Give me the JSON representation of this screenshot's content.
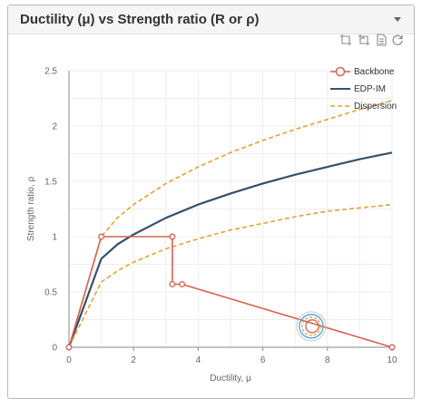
{
  "panel": {
    "title": "Ductility (μ) vs Strength ratio (R or ρ)"
  },
  "toolbox": {
    "icons": [
      "zoom-icon",
      "zoom-reset-icon",
      "data-view-icon",
      "restore-icon"
    ]
  },
  "chart_data": {
    "type": "line",
    "xlabel": "Ductility, μ",
    "ylabel": "Strength ratio, ρ",
    "xlim": [
      0,
      10
    ],
    "ylim": [
      0,
      2.5
    ],
    "xticks": [
      "0",
      "2",
      "4",
      "6",
      "8",
      "10"
    ],
    "yticks": [
      "0",
      "0.5",
      "1",
      "1.5",
      "2",
      "2.5"
    ],
    "grid": true,
    "legend_position": "top-right",
    "series": [
      {
        "name": "Backbone",
        "color": "#d4634e",
        "style": "line-with-markers",
        "x": [
          0,
          1,
          3.2,
          3.2,
          3.5,
          10
        ],
        "y": [
          0,
          1,
          1,
          0.57,
          0.57,
          0
        ]
      },
      {
        "name": "EDP-IM",
        "color": "#35506f",
        "style": "solid",
        "x": [
          0,
          1,
          1.5,
          2,
          3,
          4,
          5,
          6,
          7,
          8,
          9,
          10
        ],
        "y": [
          0,
          0.8,
          0.93,
          1.02,
          1.17,
          1.29,
          1.39,
          1.48,
          1.56,
          1.63,
          1.7,
          1.76
        ]
      },
      {
        "name": "Dispersion",
        "color": "#e1a23a",
        "style": "dashed",
        "x": [
          0,
          1,
          1.5,
          2,
          3,
          4,
          5,
          6,
          7,
          8,
          9,
          10
        ],
        "y": [
          0,
          1.0,
          1.17,
          1.29,
          1.48,
          1.63,
          1.76,
          1.87,
          1.97,
          2.06,
          2.15,
          2.23
        ]
      },
      {
        "name": "",
        "color": "#e1a23a",
        "style": "dashed",
        "x": [
          0,
          1,
          1.5,
          2,
          3,
          4,
          5,
          6,
          7,
          8,
          9,
          10
        ],
        "y": [
          0,
          0.59,
          0.69,
          0.77,
          0.89,
          0.98,
          1.06,
          1.12,
          1.18,
          1.23,
          1.26,
          1.29
        ]
      }
    ],
    "cursor_marker": {
      "x": 7.5,
      "y": 0.19
    }
  }
}
